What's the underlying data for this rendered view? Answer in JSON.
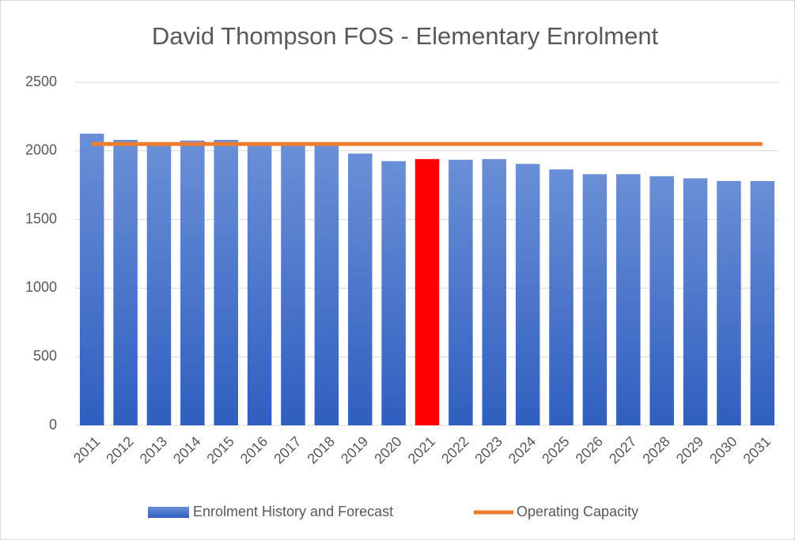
{
  "chart_data": {
    "type": "bar",
    "title": "David Thompson FOS - Elementary Enrolment",
    "categories": [
      "2011",
      "2012",
      "2013",
      "2014",
      "2015",
      "2016",
      "2017",
      "2018",
      "2019",
      "2020",
      "2021",
      "2022",
      "2023",
      "2024",
      "2025",
      "2026",
      "2027",
      "2028",
      "2029",
      "2030",
      "2031"
    ],
    "series": [
      {
        "name": "Enrolment History and Forecast",
        "type": "bar",
        "color": "#4472c4",
        "point_colors": {
          "10": "#ff0000"
        },
        "values": [
          2125,
          2080,
          2050,
          2075,
          2080,
          2050,
          2045,
          2040,
          1980,
          1925,
          1940,
          1935,
          1940,
          1905,
          1865,
          1830,
          1830,
          1815,
          1800,
          1780,
          1780
        ]
      },
      {
        "name": "Operating Capacity",
        "type": "line",
        "color": "#ed7d31",
        "values": [
          2050,
          2050,
          2050,
          2050,
          2050,
          2050,
          2050,
          2050,
          2050,
          2050,
          2050,
          2050,
          2050,
          2050,
          2050,
          2050,
          2050,
          2050,
          2050,
          2050,
          2050
        ]
      }
    ],
    "ylim": [
      0,
      2500
    ],
    "yticks": [
      0,
      500,
      1000,
      1500,
      2000,
      2500
    ],
    "grid": true,
    "legend": "bottom"
  }
}
